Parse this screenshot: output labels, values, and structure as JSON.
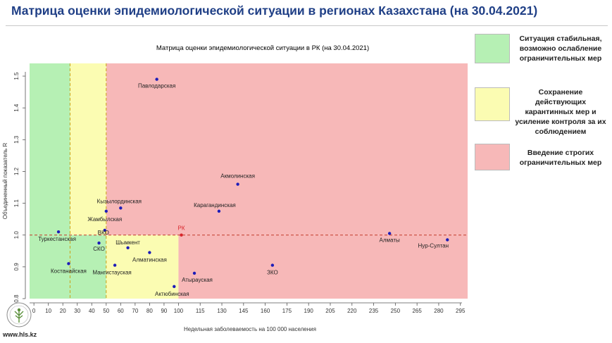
{
  "page": {
    "title": "Матрица оценки эпидемиологической ситуации в регионах Казахстана (на 30.04.2021)",
    "website": "www.hls.kz"
  },
  "legend": [
    {
      "label": "Ситуация стабильная, возможно ослабление ограничительных мер",
      "color": "#b6f0b4"
    },
    {
      "label": "Сохранение действующих карантинных мер и усиление контроля за их соблюдением",
      "color": "#fbfcb2"
    },
    {
      "label": "Введение строгих ограничительных мер",
      "color": "#f7b8b8"
    }
  ],
  "chart_data": {
    "type": "scatter",
    "title": "Матрица оценки эпидемиологической ситуации в РК (на 30.04.2021)",
    "xlabel": "Недельная заболеваемость на 100 000 населения",
    "ylabel": "Объединенный показатель R",
    "xlim": [
      -3,
      300
    ],
    "ylim": [
      0.8,
      1.54
    ],
    "x_ticks": [
      0,
      10,
      20,
      30,
      40,
      50,
      60,
      70,
      80,
      90,
      100,
      115,
      130,
      145,
      160,
      175,
      190,
      205,
      220,
      235,
      250,
      265,
      280,
      295
    ],
    "y_ticks": [
      0.8,
      0.9,
      1.0,
      1.1,
      1.2,
      1.3,
      1.4,
      1.5
    ],
    "zones": [
      {
        "name": "green",
        "x": [
          -3,
          25
        ],
        "y": [
          0.8,
          1.0
        ],
        "color": "#b6f0b4"
      },
      {
        "name": "green",
        "x": [
          -3,
          25
        ],
        "y": [
          1.0,
          1.54
        ],
        "color": "#b6f0b4"
      },
      {
        "name": "yellow",
        "x": [
          25,
          50
        ],
        "y": [
          1.0,
          1.54
        ],
        "color": "#fbfcb2"
      },
      {
        "name": "yellow",
        "x": [
          25,
          50
        ],
        "y": [
          0.8,
          1.0
        ],
        "color": "#b6f0b4"
      },
      {
        "name": "yellow",
        "x": [
          50,
          100
        ],
        "y": [
          0.8,
          1.0
        ],
        "color": "#fbfcb2"
      },
      {
        "name": "red",
        "x": [
          50,
          300
        ],
        "y": [
          1.0,
          1.54
        ],
        "color": "#f7b8b8"
      },
      {
        "name": "red",
        "x": [
          100,
          300
        ],
        "y": [
          0.8,
          1.0
        ],
        "color": "#f7b8b8"
      }
    ],
    "thresholds": {
      "x": [
        25,
        50
      ],
      "y": 1.0
    },
    "reference": {
      "label": "РК",
      "x": 102,
      "y": 1.0
    },
    "points": [
      {
        "label": "Павлодарская",
        "x": 85,
        "y": 1.49
      },
      {
        "label": "Акмолинская",
        "x": 141,
        "y": 1.16
      },
      {
        "label": "Кызылординская",
        "x": 60,
        "y": 1.085
      },
      {
        "label": "Карагандинская",
        "x": 128,
        "y": 1.075
      },
      {
        "label": "Жамбылская",
        "x": 50,
        "y": 1.075
      },
      {
        "label": "ВКО",
        "x": 49,
        "y": 1.015
      },
      {
        "label": "Туркестанская",
        "x": 17,
        "y": 1.01
      },
      {
        "label": "СКО",
        "x": 45,
        "y": 0.975
      },
      {
        "label": "Шымкент",
        "x": 65,
        "y": 0.96
      },
      {
        "label": "Алматинская",
        "x": 80,
        "y": 0.945
      },
      {
        "label": "Костанайская",
        "x": 24,
        "y": 0.91
      },
      {
        "label": "Мангистауская",
        "x": 56,
        "y": 0.905
      },
      {
        "label": "ЗКО",
        "x": 165,
        "y": 0.905
      },
      {
        "label": "Атырауская",
        "x": 111,
        "y": 0.88
      },
      {
        "label": "Актюбинская",
        "x": 97,
        "y": 0.838
      },
      {
        "label": "Алматы",
        "x": 246,
        "y": 1.005
      },
      {
        "label": "Нур-Султан",
        "x": 286,
        "y": 0.985
      }
    ]
  }
}
